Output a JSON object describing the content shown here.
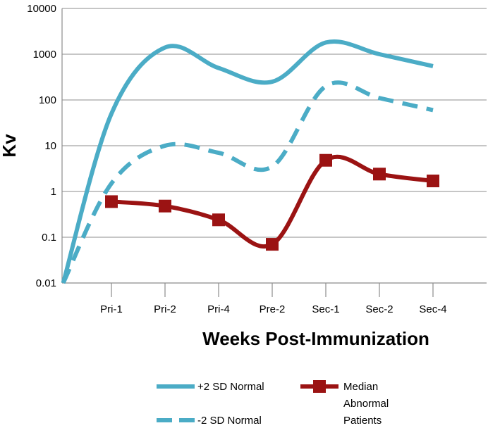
{
  "chart_data": {
    "type": "line",
    "yscale": "log",
    "ylim": [
      0.01,
      10000
    ],
    "yticks": [
      "0.01",
      "0.1",
      "1",
      "10",
      "100",
      "1000",
      "10000"
    ],
    "categories": [
      "Pri-1",
      "Pri-2",
      "Pri-4",
      "Pre-2",
      "Sec-1",
      "Sec-2",
      "Sec-4"
    ],
    "xlabel": "Weeks Post-Immunization",
    "ylabel": "Kv",
    "grid": true,
    "series": [
      {
        "name": "+2 SD Normal",
        "style": "solid",
        "color": "#4bacc6",
        "x": [
          -0.9,
          0,
          1,
          2,
          3,
          4,
          5,
          6
        ],
        "values": [
          0.01,
          50,
          1400,
          500,
          250,
          1800,
          1000,
          550
        ]
      },
      {
        "name": "-2 SD Normal",
        "style": "dashed",
        "color": "#4bacc6",
        "x": [
          -0.9,
          0,
          1,
          2,
          3,
          4,
          5,
          6
        ],
        "values": [
          0.01,
          1.5,
          10,
          7,
          3.5,
          200,
          110,
          60
        ]
      },
      {
        "name": "Median Abnormal Patients",
        "style": "solid-markers",
        "color": "#9b1313",
        "x": [
          0,
          1,
          2,
          3,
          4,
          5,
          6
        ],
        "values": [
          0.6,
          0.48,
          0.24,
          0.07,
          4.8,
          2.4,
          1.7
        ]
      }
    ],
    "legend": [
      {
        "name": "+2 SD Normal"
      },
      {
        "name": "-2 SD Normal"
      },
      {
        "name": "Median\nAbnormal\nPatients"
      }
    ]
  }
}
